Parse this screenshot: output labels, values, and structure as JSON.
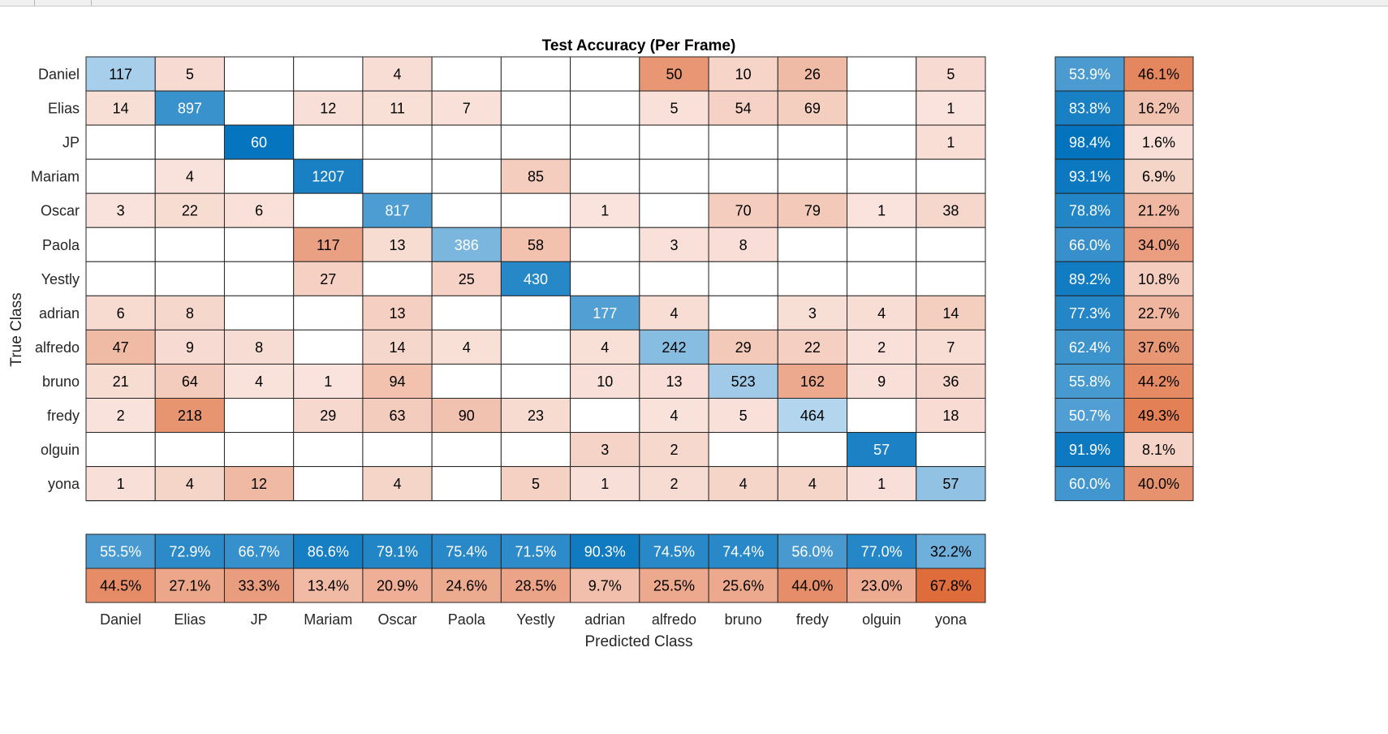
{
  "chart_data": {
    "type": "heatmap",
    "title": "Test Accuracy (Per Frame)",
    "xlabel": "Predicted Class",
    "ylabel": "True Class",
    "classes": [
      "Daniel",
      "Elias",
      "JP",
      "Mariam",
      "Oscar",
      "Paola",
      "Yestly",
      "adrian",
      "alfredo",
      "bruno",
      "fredy",
      "olguin",
      "yona"
    ],
    "matrix": [
      [
        117,
        5,
        null,
        null,
        4,
        null,
        null,
        null,
        50,
        10,
        26,
        null,
        5
      ],
      [
        14,
        897,
        null,
        12,
        11,
        7,
        null,
        null,
        5,
        54,
        69,
        null,
        1
      ],
      [
        null,
        null,
        60,
        null,
        null,
        null,
        null,
        null,
        null,
        null,
        null,
        null,
        1
      ],
      [
        null,
        4,
        null,
        1207,
        null,
        null,
        85,
        null,
        null,
        null,
        null,
        null,
        null
      ],
      [
        3,
        22,
        6,
        null,
        817,
        null,
        null,
        1,
        null,
        70,
        79,
        1,
        38
      ],
      [
        null,
        null,
        null,
        117,
        13,
        386,
        58,
        null,
        3,
        8,
        null,
        null,
        null
      ],
      [
        null,
        null,
        null,
        27,
        null,
        25,
        430,
        null,
        null,
        null,
        null,
        null,
        null
      ],
      [
        6,
        8,
        null,
        null,
        13,
        null,
        null,
        177,
        4,
        null,
        3,
        4,
        14
      ],
      [
        47,
        9,
        8,
        null,
        14,
        4,
        null,
        4,
        242,
        29,
        22,
        2,
        7
      ],
      [
        21,
        64,
        4,
        1,
        94,
        null,
        null,
        10,
        13,
        523,
        162,
        9,
        36
      ],
      [
        2,
        218,
        null,
        29,
        63,
        90,
        23,
        null,
        4,
        5,
        464,
        null,
        18
      ],
      [
        null,
        null,
        null,
        null,
        null,
        null,
        null,
        3,
        2,
        null,
        null,
        57,
        null
      ],
      [
        1,
        4,
        12,
        null,
        4,
        null,
        5,
        1,
        2,
        4,
        4,
        1,
        57
      ]
    ],
    "row_summary": [
      [
        "53.9%",
        "46.1%"
      ],
      [
        "83.8%",
        "16.2%"
      ],
      [
        "98.4%",
        "1.6%"
      ],
      [
        "93.1%",
        "6.9%"
      ],
      [
        "78.8%",
        "21.2%"
      ],
      [
        "66.0%",
        "34.0%"
      ],
      [
        "89.2%",
        "10.8%"
      ],
      [
        "77.3%",
        "22.7%"
      ],
      [
        "62.4%",
        "37.6%"
      ],
      [
        "55.8%",
        "44.2%"
      ],
      [
        "50.7%",
        "49.3%"
      ],
      [
        "91.9%",
        "8.1%"
      ],
      [
        "60.0%",
        "40.0%"
      ]
    ],
    "column_summary_correct": [
      "55.5%",
      "72.9%",
      "66.7%",
      "86.6%",
      "79.1%",
      "75.4%",
      "71.5%",
      "90.3%",
      "74.5%",
      "74.4%",
      "56.0%",
      "77.0%",
      "32.2%"
    ],
    "column_summary_incorrect": [
      "44.5%",
      "27.1%",
      "33.3%",
      "13.4%",
      "20.9%",
      "24.6%",
      "28.5%",
      "9.7%",
      "25.5%",
      "25.6%",
      "44.0%",
      "23.0%",
      "67.8%"
    ],
    "colors": {
      "correct_dark": "#0072bd",
      "correct_light": "#c7e0f3",
      "incorrect_dark": "#d95319",
      "incorrect_light": "#f9e3dc",
      "text_dark": "#000000",
      "text_light": "#ffffff",
      "grid": "#262626"
    }
  }
}
